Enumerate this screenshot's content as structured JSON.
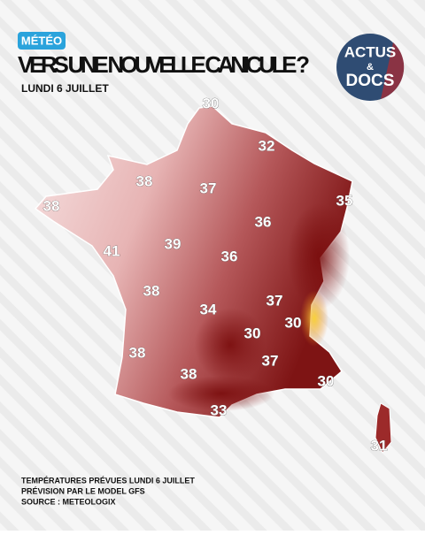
{
  "header": {
    "badge": "MÉTÉO",
    "title": "VERS UNE NOUVELLE CANICULE ?",
    "subtitle": "LUNDI 6 JUILLET"
  },
  "logo": {
    "top": "ACTUS",
    "middle": "&",
    "bottom": "DOCS"
  },
  "map": {
    "labels": [
      30,
      32,
      38,
      37,
      38,
      35,
      41,
      39,
      36,
      36,
      38,
      34,
      37,
      30,
      30,
      38,
      37,
      38,
      30,
      33,
      31
    ]
  },
  "footer": {
    "lines": [
      "TEMPÉRATURES PRÉVUES LUNDI 6 JUILLET",
      "PRÉVISION PAR LE MODEL GFS",
      "SOURCE : METEOLOGIX"
    ]
  }
}
